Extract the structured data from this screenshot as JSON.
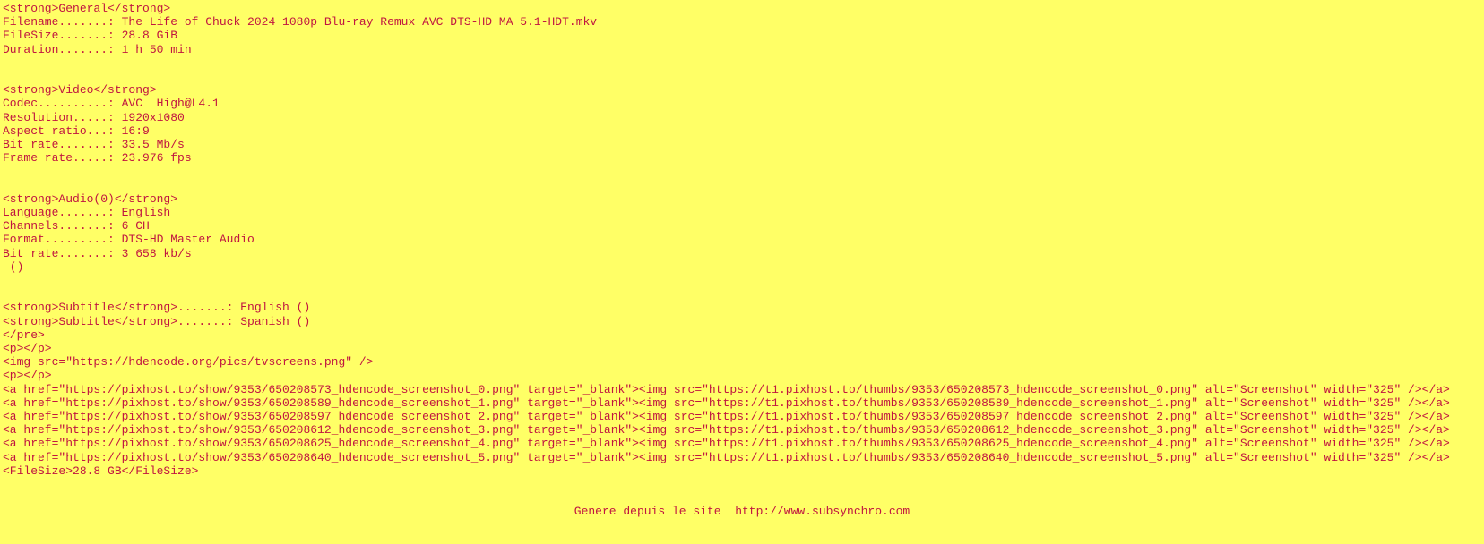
{
  "page": {
    "background_color": "#FFFF66",
    "text_color": "#C01540"
  },
  "document": {
    "lines": [
      "<strong>General</strong>",
      "Filename.......: The Life of Chuck 2024 1080p Blu-ray Remux AVC DTS-HD MA 5.1-HDT.mkv",
      "FileSize.......: 28.8 GiB",
      "Duration.......: 1 h 50 min",
      "",
      "",
      "<strong>Video</strong>",
      "Codec..........: AVC  High@L4.1",
      "Resolution.....: 1920x1080",
      "Aspect ratio...: 16:9",
      "Bit rate.......: 33.5 Mb/s",
      "Frame rate.....: 23.976 fps",
      "",
      "",
      "<strong>Audio(0)</strong>",
      "Language.......: English",
      "Channels.......: 6 CH",
      "Format.........: DTS-HD Master Audio",
      "Bit rate.......: 3 658 kb/s",
      " ()",
      "",
      "",
      "<strong>Subtitle</strong>.......: English ()",
      "<strong>Subtitle</strong>.......: Spanish ()",
      "</pre>",
      "<p></p>",
      "<img src=\"https://hdencode.org/pics/tvscreens.png\" />",
      "<p></p>",
      "<a href=\"https://pixhost.to/show/9353/650208573_hdencode_screenshot_0.png\" target=\"_blank\"><img src=\"https://t1.pixhost.to/thumbs/9353/650208573_hdencode_screenshot_0.png\" alt=\"Screenshot\" width=\"325\" /></a>",
      "<a href=\"https://pixhost.to/show/9353/650208589_hdencode_screenshot_1.png\" target=\"_blank\"><img src=\"https://t1.pixhost.to/thumbs/9353/650208589_hdencode_screenshot_1.png\" alt=\"Screenshot\" width=\"325\" /></a>",
      "<a href=\"https://pixhost.to/show/9353/650208597_hdencode_screenshot_2.png\" target=\"_blank\"><img src=\"https://t1.pixhost.to/thumbs/9353/650208597_hdencode_screenshot_2.png\" alt=\"Screenshot\" width=\"325\" /></a>",
      "<a href=\"https://pixhost.to/show/9353/650208612_hdencode_screenshot_3.png\" target=\"_blank\"><img src=\"https://t1.pixhost.to/thumbs/9353/650208612_hdencode_screenshot_3.png\" alt=\"Screenshot\" width=\"325\" /></a>",
      "<a href=\"https://pixhost.to/show/9353/650208625_hdencode_screenshot_4.png\" target=\"_blank\"><img src=\"https://t1.pixhost.to/thumbs/9353/650208625_hdencode_screenshot_4.png\" alt=\"Screenshot\" width=\"325\" /></a>",
      "<a href=\"https://pixhost.to/show/9353/650208640_hdencode_screenshot_5.png\" target=\"_blank\"><img src=\"https://t1.pixhost.to/thumbs/9353/650208640_hdencode_screenshot_5.png\" alt=\"Screenshot\" width=\"325\" /></a>",
      "<FileSize>28.8 GB</FileSize>",
      "",
      ""
    ],
    "footer": "Genere depuis le site  http://www.subsynchro.com"
  }
}
